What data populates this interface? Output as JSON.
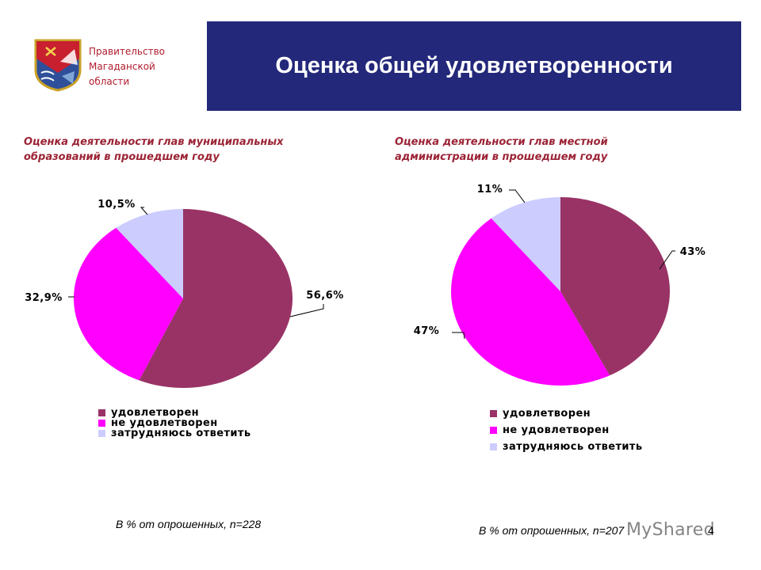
{
  "header": {
    "org_lines": [
      "Правительство",
      "Магаданской",
      "области"
    ],
    "title": "Оценка общей удовлетворенности"
  },
  "colors": {
    "banner": "#23287a",
    "subtitle": "#9b2335",
    "satisfied": "#993366",
    "not_satisfied": "#ff00ff",
    "hard_to_say": "#ccccff"
  },
  "chart_data": [
    {
      "type": "pie",
      "title_lines": [
        "Оценка деятельности глав муниципальных",
        "образований в прошедшем году"
      ],
      "categories": [
        "удовлетворен",
        "не удовлетворен",
        "затрудняюсь ответить"
      ],
      "values": [
        56.6,
        32.9,
        10.5
      ],
      "labels": [
        "56,6%",
        "32,9%",
        "10,5%"
      ],
      "note": "В % от опрошенных, n=228",
      "legend_placement": "bottom-left"
    },
    {
      "type": "pie",
      "title_lines": [
        "Оценка деятельности глав местной",
        "администрации в прошедшем году"
      ],
      "categories": [
        "удовлетворен",
        "не удовлетворен",
        "затрудняюсь ответить"
      ],
      "values": [
        43,
        47,
        11
      ],
      "labels": [
        "43%",
        "47%",
        "11%"
      ],
      "note": "В % от опрошенных, n=207",
      "legend_placement": "bottom-left"
    }
  ],
  "page_number": "4",
  "watermark": "MyShared"
}
